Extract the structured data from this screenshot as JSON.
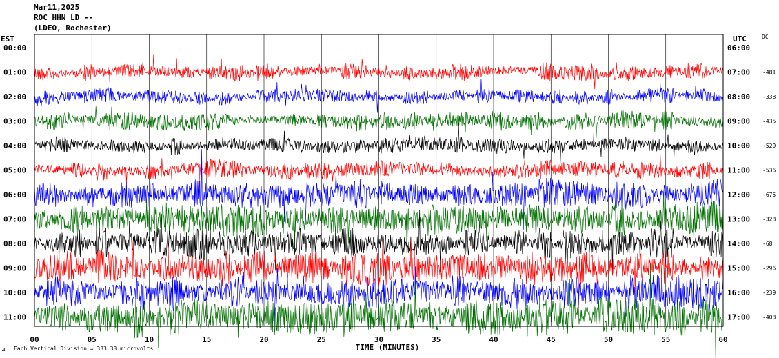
{
  "header": {
    "date": "Mar11,2025",
    "station": "ROC HHN LD --",
    "network": "(LDEO, Rochester)"
  },
  "axes": {
    "left_title": "EST",
    "right_title": "UTC",
    "dc_title": "DC",
    "x_title": "TIME (MINUTES)",
    "footer_note": "Each Vertical Division = 333.33 microvolts",
    "footer_mark": "⊿"
  },
  "chart_data": {
    "type": "line",
    "title": "",
    "xlabel": "TIME (MINUTES)",
    "ylabel": "",
    "xlim": [
      0,
      60
    ],
    "x_ticks": [
      "00",
      "05",
      "10",
      "15",
      "20",
      "25",
      "30",
      "35",
      "40",
      "45",
      "50",
      "55",
      "60"
    ],
    "grid": true,
    "vertical_division_microvolts": 333.33,
    "trace_colors": [
      "#ff0000",
      "#0000ff",
      "#007000",
      "#000000"
    ],
    "rows": [
      {
        "est": "00:00",
        "utc": "06:00",
        "dc": "",
        "color": "#ff0000",
        "amplitude": 0,
        "has_trace": false
      },
      {
        "est": "01:00",
        "utc": "07:00",
        "dc": "-481",
        "color": "#ff0000",
        "amplitude": 9,
        "has_trace": true
      },
      {
        "est": "02:00",
        "utc": "08:00",
        "dc": "-338",
        "color": "#0000ff",
        "amplitude": 8,
        "has_trace": true
      },
      {
        "est": "03:00",
        "utc": "09:00",
        "dc": "-435",
        "color": "#007000",
        "amplitude": 10,
        "has_trace": true
      },
      {
        "est": "04:00",
        "utc": "10:00",
        "dc": "-529",
        "color": "#000000",
        "amplitude": 9,
        "has_trace": true
      },
      {
        "est": "05:00",
        "utc": "11:00",
        "dc": "-536",
        "color": "#ff0000",
        "amplitude": 10,
        "has_trace": true
      },
      {
        "est": "06:00",
        "utc": "12:00",
        "dc": "-675",
        "color": "#0000ff",
        "amplitude": 16,
        "has_trace": true
      },
      {
        "est": "07:00",
        "utc": "13:00",
        "dc": "-328",
        "color": "#007000",
        "amplitude": 18,
        "has_trace": true
      },
      {
        "est": "08:00",
        "utc": "14:00",
        "dc": "-68",
        "color": "#000000",
        "amplitude": 16,
        "has_trace": true
      },
      {
        "est": "09:00",
        "utc": "15:00",
        "dc": "-296",
        "color": "#ff0000",
        "amplitude": 18,
        "has_trace": true
      },
      {
        "est": "10:00",
        "utc": "16:00",
        "dc": "-239",
        "color": "#0000ff",
        "amplitude": 18,
        "has_trace": true
      },
      {
        "est": "11:00",
        "utc": "17:00",
        "dc": "-408",
        "color": "#007000",
        "amplitude": 20,
        "has_trace": true
      }
    ]
  }
}
